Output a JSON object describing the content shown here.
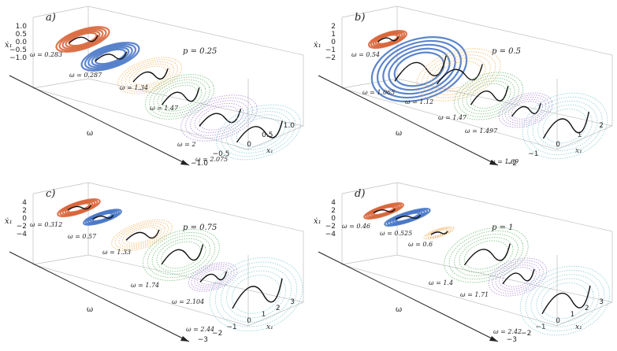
{
  "figure": {
    "palette": [
      "#d9663b",
      "#4a78c8",
      "#f0a94c",
      "#5fb56a",
      "#a47ad1",
      "#7cc6d0"
    ],
    "trajectory_color": "#111111"
  },
  "chart_data": [
    {
      "type": "scatter",
      "panel_label": "a)",
      "p_label": "p = 0.25",
      "xlabel": "ω",
      "ylabel": "ẋ₁",
      "zlabel": "x₁",
      "y_ticks": [
        "1.0",
        "0.5",
        "0.0",
        "−0.5",
        "−1.0"
      ],
      "x_ticks": [
        "1.0",
        "0.5",
        "0",
        "−0.5",
        "−1.0"
      ],
      "series": [
        {
          "name": "ω = 0.283",
          "omega": 0.283
        },
        {
          "name": "ω = 0.287",
          "omega": 0.287
        },
        {
          "name": "ω = 1.34",
          "omega": 1.34
        },
        {
          "name": "ω = 1.47",
          "omega": 1.47
        },
        {
          "name": "ω = 2",
          "omega": 2
        },
        {
          "name": "ω = 2.075",
          "omega": 2.075
        }
      ]
    },
    {
      "type": "scatter",
      "panel_label": "b)",
      "p_label": "p = 0.5",
      "xlabel": "ω",
      "ylabel": "ẋ₁",
      "zlabel": "x₁",
      "y_ticks": [
        "2",
        "1",
        "0",
        "−1",
        "−2"
      ],
      "x_ticks": [
        "2",
        "1",
        "0",
        "−1",
        "−2"
      ],
      "series": [
        {
          "name": "ω = 0.54",
          "omega": 0.54
        },
        {
          "name": "ω = 1.065",
          "omega": 1.065
        },
        {
          "name": "ω = 1.12",
          "omega": 1.12
        },
        {
          "name": "ω = 1.47",
          "omega": 1.47
        },
        {
          "name": "ω = 1.497",
          "omega": 1.497
        },
        {
          "name": "ω = 1.69",
          "omega": 1.69
        }
      ]
    },
    {
      "type": "scatter",
      "panel_label": "c)",
      "p_label": "p = 0.75",
      "xlabel": "ω",
      "ylabel": "ẋ₁",
      "zlabel": "x₁",
      "y_ticks": [
        "4",
        "2",
        "0",
        "−2",
        "−4"
      ],
      "x_ticks": [
        "3",
        "2",
        "1",
        "0",
        "−1",
        "−2",
        "−3"
      ],
      "series": [
        {
          "name": "ω = 0.312",
          "omega": 0.312
        },
        {
          "name": "ω = 0.57",
          "omega": 0.57
        },
        {
          "name": "ω = 1.33",
          "omega": 1.33
        },
        {
          "name": "ω = 1.74",
          "omega": 1.74
        },
        {
          "name": "ω = 2.104",
          "omega": 2.104
        },
        {
          "name": "ω = 2.44",
          "omega": 2.44
        }
      ]
    },
    {
      "type": "scatter",
      "panel_label": "d)",
      "p_label": "p = 1",
      "xlabel": "ω",
      "ylabel": "ẋ₁",
      "zlabel": "x₁",
      "y_ticks": [
        "4",
        "2",
        "0",
        "−2",
        "−4"
      ],
      "x_ticks": [
        "3",
        "2",
        "1",
        "0",
        "−1",
        "−2",
        "−3"
      ],
      "series": [
        {
          "name": "ω = 0.46",
          "omega": 0.46
        },
        {
          "name": "ω = 0.525",
          "omega": 0.525
        },
        {
          "name": "ω = 0.6",
          "omega": 0.6
        },
        {
          "name": "ω = 1.4",
          "omega": 1.4
        },
        {
          "name": "ω = 1.71",
          "omega": 1.71
        },
        {
          "name": "ω = 2.42",
          "omega": 2.42
        }
      ]
    }
  ]
}
